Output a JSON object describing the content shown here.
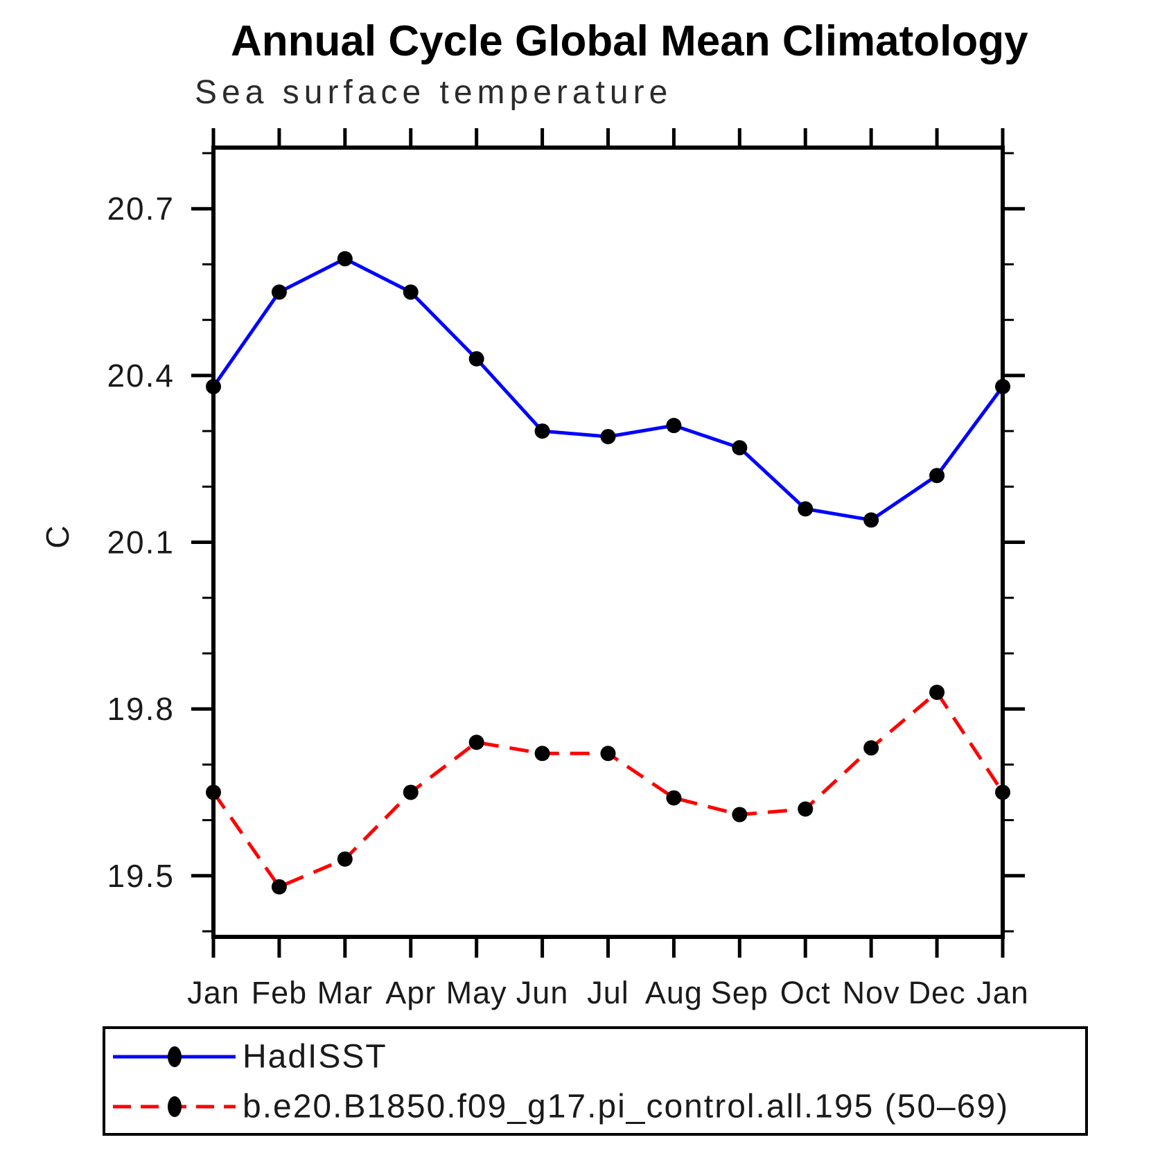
{
  "title": "Annual Cycle Global Mean Climatology",
  "subtitle": "Sea surface temperature",
  "colors": {
    "series_hadisst": "#0000ff",
    "series_model": "#ff0000",
    "marker": "#000000",
    "axis": "#000000"
  },
  "chart_data": {
    "type": "line",
    "title": "Annual Cycle Global Mean Climatology",
    "subtitle": "Sea surface temperature",
    "ylabel": "C",
    "categories": [
      "Jan",
      "Feb",
      "Mar",
      "Apr",
      "May",
      "Jun",
      "Jul",
      "Aug",
      "Sep",
      "Oct",
      "Nov",
      "Dec",
      "Jan"
    ],
    "series": [
      {
        "name": "HadISST",
        "color": "#0000ff",
        "line_style": "solid",
        "marker": "filled-circle",
        "marker_color": "#000000",
        "values": [
          20.38,
          20.55,
          20.61,
          20.55,
          20.43,
          20.3,
          20.29,
          20.31,
          20.27,
          20.16,
          20.14,
          20.22,
          20.38
        ]
      },
      {
        "name": "b.e20.B1850.f09_g17.pi_control.all.195 (50–69)",
        "color": "#ff0000",
        "line_style": "dashed",
        "marker": "filled-circle",
        "marker_color": "#000000",
        "values": [
          19.65,
          19.48,
          19.53,
          19.65,
          19.74,
          19.72,
          19.72,
          19.64,
          19.61,
          19.62,
          19.73,
          19.83,
          19.65
        ]
      }
    ],
    "ylim": [
      19.39,
      20.81
    ],
    "yticks_major": [
      19.5,
      19.8,
      20.1,
      20.4,
      20.7
    ],
    "ytick_minor_step": 0.1,
    "grid": false,
    "legend_position": "bottom"
  }
}
